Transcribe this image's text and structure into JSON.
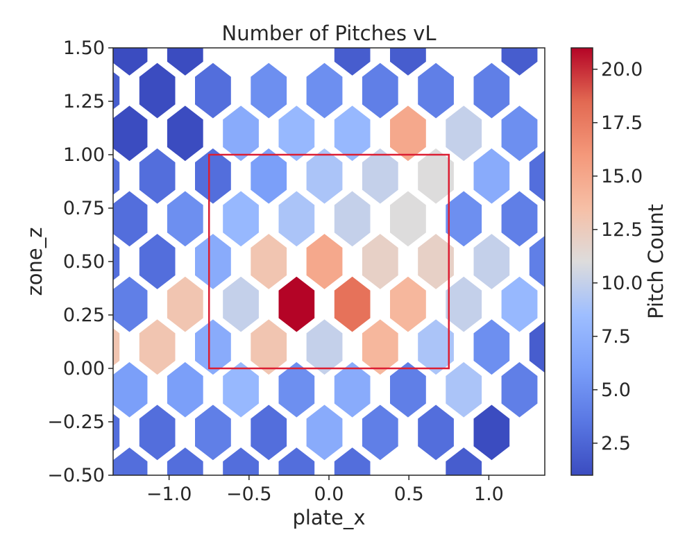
{
  "chart_data": {
    "type": "heatmap",
    "subtype": "hexbin",
    "title": "Number of Pitches vL",
    "xlabel": "plate_x",
    "ylabel": "zone_z",
    "xlim": [
      -1.35,
      1.35
    ],
    "ylim": [
      -0.5,
      1.5
    ],
    "x_ticks": [
      -1.0,
      -0.5,
      0.0,
      0.5,
      1.0
    ],
    "x_tick_labels": [
      "−1.0",
      "−0.5",
      "0.0",
      "0.5",
      "1.0"
    ],
    "y_ticks": [
      -0.5,
      -0.25,
      0.0,
      0.25,
      0.5,
      0.75,
      1.0,
      1.25,
      1.5
    ],
    "y_tick_labels": [
      "−0.50",
      "−0.25",
      "0.00",
      "0.25",
      "0.50",
      "0.75",
      "1.00",
      "1.25",
      "1.50"
    ],
    "colormap": "coolwarm",
    "colorbar": {
      "label": "Pitch Count",
      "range": [
        1,
        21
      ],
      "ticks": [
        2.5,
        5.0,
        7.5,
        10.0,
        12.5,
        15.0,
        17.5,
        20.0
      ],
      "tick_labels": [
        "2.5",
        "5.0",
        "7.5",
        "10.0",
        "12.5",
        "15.0",
        "17.5",
        "20.0"
      ]
    },
    "strike_zone": {
      "x": [
        -0.75,
        0.75
      ],
      "z": [
        0.0,
        1.0
      ],
      "color": "#dc1e32"
    },
    "grid": false,
    "hex_size": 0.1282,
    "hexes": [
      {
        "x": -1.248,
        "z": 1.5,
        "count": 1
      },
      {
        "x": -0.8995,
        "z": 1.5,
        "count": 1
      },
      {
        "x": -0.551,
        "z": 1.5,
        "count": 0
      },
      {
        "x": -0.2025,
        "z": 1.5,
        "count": 0
      },
      {
        "x": 0.146,
        "z": 1.5,
        "count": 2
      },
      {
        "x": 0.4945,
        "z": 1.5,
        "count": 2
      },
      {
        "x": 0.843,
        "z": 1.5,
        "count": 0
      },
      {
        "x": 1.1915,
        "z": 1.5,
        "count": 2
      },
      {
        "x": -1.4223,
        "z": 1.3,
        "count": 2
      },
      {
        "x": -1.0738,
        "z": 1.3,
        "count": 1
      },
      {
        "x": -0.7253,
        "z": 1.3,
        "count": 3
      },
      {
        "x": -0.3768,
        "z": 1.3,
        "count": 5
      },
      {
        "x": -0.0283,
        "z": 1.3,
        "count": 5
      },
      {
        "x": 0.3203,
        "z": 1.3,
        "count": 4
      },
      {
        "x": 0.6688,
        "z": 1.3,
        "count": 4
      },
      {
        "x": 1.0173,
        "z": 1.3,
        "count": 4
      },
      {
        "x": 1.3658,
        "z": 1.3,
        "count": 0
      },
      {
        "x": -1.248,
        "z": 1.1,
        "count": 1
      },
      {
        "x": -0.8995,
        "z": 1.1,
        "count": 1
      },
      {
        "x": -0.551,
        "z": 1.1,
        "count": 7
      },
      {
        "x": -0.2025,
        "z": 1.1,
        "count": 8
      },
      {
        "x": 0.146,
        "z": 1.1,
        "count": 8
      },
      {
        "x": 0.4945,
        "z": 1.1,
        "count": 15
      },
      {
        "x": 0.843,
        "z": 1.1,
        "count": 10
      },
      {
        "x": 1.1915,
        "z": 1.1,
        "count": 5
      },
      {
        "x": 1.54,
        "z": 1.1,
        "count": 2
      },
      {
        "x": -1.4223,
        "z": 0.9,
        "count": 3
      },
      {
        "x": -1.0738,
        "z": 0.9,
        "count": 3
      },
      {
        "x": -0.7253,
        "z": 0.9,
        "count": 3
      },
      {
        "x": -0.3768,
        "z": 0.9,
        "count": 6
      },
      {
        "x": -0.0283,
        "z": 0.9,
        "count": 9
      },
      {
        "x": 0.3203,
        "z": 0.9,
        "count": 10
      },
      {
        "x": 0.6688,
        "z": 0.9,
        "count": 11
      },
      {
        "x": 1.0173,
        "z": 0.9,
        "count": 7
      },
      {
        "x": 1.3658,
        "z": 0.9,
        "count": 3
      },
      {
        "x": -1.248,
        "z": 0.7,
        "count": 3
      },
      {
        "x": -0.8995,
        "z": 0.7,
        "count": 5
      },
      {
        "x": -0.551,
        "z": 0.7,
        "count": 8
      },
      {
        "x": -0.2025,
        "z": 0.7,
        "count": 9
      },
      {
        "x": 0.146,
        "z": 0.7,
        "count": 10
      },
      {
        "x": 0.4945,
        "z": 0.7,
        "count": 11
      },
      {
        "x": 0.843,
        "z": 0.7,
        "count": 5
      },
      {
        "x": 1.1915,
        "z": 0.7,
        "count": 4
      },
      {
        "x": 1.54,
        "z": 0.7,
        "count": 0
      },
      {
        "x": -1.4223,
        "z": 0.5,
        "count": 3
      },
      {
        "x": -1.0738,
        "z": 0.5,
        "count": 3
      },
      {
        "x": -0.7253,
        "z": 0.5,
        "count": 7
      },
      {
        "x": -0.3768,
        "z": 0.5,
        "count": 13
      },
      {
        "x": -0.0283,
        "z": 0.5,
        "count": 15
      },
      {
        "x": 0.3203,
        "z": 0.5,
        "count": 12
      },
      {
        "x": 0.6688,
        "z": 0.5,
        "count": 12
      },
      {
        "x": 1.0173,
        "z": 0.5,
        "count": 10
      },
      {
        "x": 1.3658,
        "z": 0.5,
        "count": 4
      },
      {
        "x": -1.248,
        "z": 0.3,
        "count": 4
      },
      {
        "x": -0.8995,
        "z": 0.3,
        "count": 13
      },
      {
        "x": -0.551,
        "z": 0.3,
        "count": 10
      },
      {
        "x": -0.2025,
        "z": 0.3,
        "count": 21
      },
      {
        "x": 0.146,
        "z": 0.3,
        "count": 18
      },
      {
        "x": 0.4945,
        "z": 0.3,
        "count": 14
      },
      {
        "x": 0.843,
        "z": 0.3,
        "count": 10
      },
      {
        "x": 1.1915,
        "z": 0.3,
        "count": 8
      },
      {
        "x": 1.54,
        "z": 0.3,
        "count": 3
      },
      {
        "x": -1.4223,
        "z": 0.1,
        "count": 13
      },
      {
        "x": -1.0738,
        "z": 0.1,
        "count": 13
      },
      {
        "x": -0.7253,
        "z": 0.1,
        "count": 7
      },
      {
        "x": -0.3768,
        "z": 0.1,
        "count": 13
      },
      {
        "x": -0.0283,
        "z": 0.1,
        "count": 10
      },
      {
        "x": 0.3203,
        "z": 0.1,
        "count": 14
      },
      {
        "x": 0.6688,
        "z": 0.1,
        "count": 9
      },
      {
        "x": 1.0173,
        "z": 0.1,
        "count": 5
      },
      {
        "x": 1.3658,
        "z": 0.1,
        "count": 2
      },
      {
        "x": -1.248,
        "z": -0.1,
        "count": 6
      },
      {
        "x": -0.8995,
        "z": -0.1,
        "count": 6
      },
      {
        "x": -0.551,
        "z": -0.1,
        "count": 8
      },
      {
        "x": -0.2025,
        "z": -0.1,
        "count": 5
      },
      {
        "x": 0.146,
        "z": -0.1,
        "count": 7
      },
      {
        "x": 0.4945,
        "z": -0.1,
        "count": 4
      },
      {
        "x": 0.843,
        "z": -0.1,
        "count": 9
      },
      {
        "x": 1.1915,
        "z": -0.1,
        "count": 4
      },
      {
        "x": 1.54,
        "z": -0.1,
        "count": 2
      },
      {
        "x": -1.4223,
        "z": -0.3,
        "count": 3
      },
      {
        "x": -1.0738,
        "z": -0.3,
        "count": 3
      },
      {
        "x": -0.7253,
        "z": -0.3,
        "count": 4
      },
      {
        "x": -0.3768,
        "z": -0.3,
        "count": 3
      },
      {
        "x": -0.0283,
        "z": -0.3,
        "count": 7
      },
      {
        "x": 0.3203,
        "z": -0.3,
        "count": 4
      },
      {
        "x": 0.6688,
        "z": -0.3,
        "count": 3
      },
      {
        "x": 1.0173,
        "z": -0.3,
        "count": 1
      },
      {
        "x": 1.3658,
        "z": -0.3,
        "count": 0
      },
      {
        "x": -1.248,
        "z": -0.5,
        "count": 3
      },
      {
        "x": -0.8995,
        "z": -0.5,
        "count": 3
      },
      {
        "x": -0.551,
        "z": -0.5,
        "count": 3
      },
      {
        "x": -0.2025,
        "z": -0.5,
        "count": 3
      },
      {
        "x": 0.146,
        "z": -0.5,
        "count": 3
      },
      {
        "x": 0.4945,
        "z": -0.5,
        "count": 0
      },
      {
        "x": 0.843,
        "z": -0.5,
        "count": 2
      },
      {
        "x": 1.1915,
        "z": -0.5,
        "count": 0
      },
      {
        "x": 1.54,
        "z": -0.5,
        "count": 2
      }
    ]
  }
}
